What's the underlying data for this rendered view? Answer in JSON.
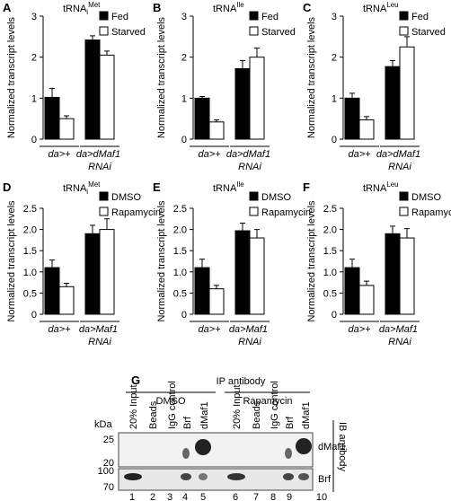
{
  "chart_data": [
    {
      "panel": "A",
      "type": "bar",
      "title": "tRNA",
      "title_sub": "i",
      "title_sup": "Met",
      "ylabel": "Normalized transcript levels",
      "categories": [
        "da>+",
        "da>dMaf1 RNAi"
      ],
      "series": [
        {
          "name": "Fed",
          "color": "#000000",
          "values": [
            1.02,
            2.42
          ],
          "errors": [
            0.22,
            0.1
          ]
        },
        {
          "name": "Starved",
          "color": "#ffffff",
          "values": [
            0.5,
            2.05
          ],
          "errors": [
            0.07,
            0.1
          ]
        }
      ],
      "ylim": [
        0,
        3
      ],
      "yticks": [
        0,
        1,
        2,
        3
      ]
    },
    {
      "panel": "B",
      "type": "bar",
      "title": "tRNA",
      "title_sup": "Ile",
      "ylabel": "Normalized transcript levels",
      "categories": [
        "da>+",
        "da>dMaf1 RNAi"
      ],
      "series": [
        {
          "name": "Fed",
          "color": "#000000",
          "values": [
            1.0,
            1.72
          ],
          "errors": [
            0.04,
            0.2
          ]
        },
        {
          "name": "Starved",
          "color": "#ffffff",
          "values": [
            0.42,
            2.0
          ],
          "errors": [
            0.05,
            0.22
          ]
        }
      ],
      "ylim": [
        0,
        3
      ],
      "yticks": [
        0,
        1,
        2,
        3
      ]
    },
    {
      "panel": "C",
      "type": "bar",
      "title": "tRNA",
      "title_sup": "Leu",
      "ylabel": "Normalized transcript levels",
      "categories": [
        "da>+",
        "da>dMaf1 RNAi"
      ],
      "series": [
        {
          "name": "Fed",
          "color": "#000000",
          "values": [
            1.0,
            1.77
          ],
          "errors": [
            0.12,
            0.15
          ]
        },
        {
          "name": "Starved",
          "color": "#ffffff",
          "values": [
            0.47,
            2.25
          ],
          "errors": [
            0.08,
            0.25
          ]
        }
      ],
      "ylim": [
        0,
        3
      ],
      "yticks": [
        0,
        1,
        2,
        3
      ]
    },
    {
      "panel": "D",
      "type": "bar",
      "title": "tRNA",
      "title_sub": "i",
      "title_sup": "Met",
      "ylabel": "Normalized transcript levels",
      "categories": [
        "da>+",
        "da>Maf1 RNAi"
      ],
      "series": [
        {
          "name": "DMSO",
          "color": "#000000",
          "values": [
            1.1,
            1.9
          ],
          "errors": [
            0.18,
            0.2
          ]
        },
        {
          "name": "Rapamycin",
          "color": "#ffffff",
          "values": [
            0.65,
            2.0
          ],
          "errors": [
            0.08,
            0.25
          ]
        }
      ],
      "ylim": [
        0,
        2.5
      ],
      "yticks": [
        0,
        0.5,
        {
          "value": 1,
          "label": "1.0"
        },
        1.5,
        {
          "value": 2,
          "label": "2.0"
        },
        2.5
      ]
    },
    {
      "panel": "E",
      "type": "bar",
      "title": "tRNA",
      "title_sup": "Ile",
      "ylabel": "Normalized transcript levels",
      "categories": [
        "da>+",
        "da>Maf1 RNAi"
      ],
      "series": [
        {
          "name": "DMSO",
          "color": "#000000",
          "values": [
            1.1,
            1.97
          ],
          "errors": [
            0.2,
            0.18
          ]
        },
        {
          "name": "Rapamycin",
          "color": "#ffffff",
          "values": [
            0.6,
            1.8
          ],
          "errors": [
            0.08,
            0.2
          ]
        }
      ],
      "ylim": [
        0,
        2.5
      ],
      "yticks": [
        0,
        0.5,
        {
          "value": 1,
          "label": "1.0"
        },
        1.5,
        {
          "value": 2,
          "label": "2.0"
        },
        2.5
      ]
    },
    {
      "panel": "F",
      "type": "bar",
      "title": "tRNA",
      "title_sup": "Leu",
      "ylabel": "Normalized transcript levels",
      "categories": [
        "da>+",
        "da>Maf1 RNAi"
      ],
      "series": [
        {
          "name": "DMSO",
          "color": "#000000",
          "values": [
            1.1,
            1.9
          ],
          "errors": [
            0.2,
            0.18
          ]
        },
        {
          "name": "Rapamycin",
          "color": "#ffffff",
          "values": [
            0.68,
            1.8
          ],
          "errors": [
            0.1,
            0.22
          ]
        }
      ],
      "ylim": [
        0,
        2.5
      ],
      "yticks": [
        0,
        0.5,
        {
          "value": 1,
          "label": "1.0"
        },
        1.5,
        {
          "value": 2,
          "label": "2.0"
        },
        2.5
      ]
    }
  ],
  "blot": {
    "panel": "G",
    "header": "IP antibody",
    "groups": [
      "DMSO",
      "Rapamycin"
    ],
    "lanes": [
      "20% Input",
      "Beads",
      "IgG control",
      "Brf",
      "dMaf1",
      "20% Input",
      "Beads",
      "IgG control",
      "Brf",
      "dMaf1"
    ],
    "lane_numbers": [
      "1",
      "2",
      "3",
      "4",
      "5",
      "6",
      "7",
      "8",
      "9",
      "10"
    ],
    "unit": "kDa",
    "markers": [
      "25",
      "20",
      "100",
      "70"
    ],
    "bands": [
      "dMaf1",
      "Brf"
    ],
    "side": "IB antibody"
  }
}
